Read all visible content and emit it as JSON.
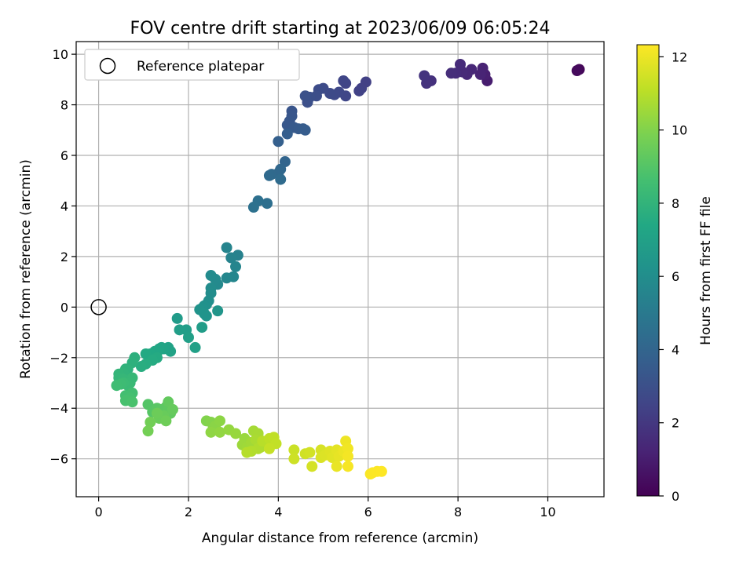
{
  "chart_data": {
    "type": "scatter",
    "title": "FOV centre drift starting at 2023/06/09 06:05:24",
    "xlabel": "Angular distance from reference (arcmin)",
    "ylabel": "Rotation from reference (arcmin)",
    "xlim": [
      -0.5,
      11.25
    ],
    "ylim": [
      -7.5,
      10.5
    ],
    "xticks": [
      0,
      2,
      4,
      6,
      8,
      10
    ],
    "yticks": [
      -6,
      -4,
      -2,
      0,
      2,
      4,
      6,
      8,
      10
    ],
    "grid": true,
    "colormap": "viridis",
    "colorbar": {
      "label": "Hours from first FF file",
      "range": [
        0,
        12.33
      ],
      "ticks": [
        0,
        2,
        4,
        6,
        8,
        10,
        12
      ]
    },
    "legend": {
      "position": "top-left",
      "entries": [
        {
          "label": "Reference platepar",
          "marker": "open-circle"
        }
      ]
    },
    "reference_point": {
      "x": 0,
      "y": 0
    },
    "series": [
      {
        "points": [
          [
            10.7,
            9.4,
            0.2
          ],
          [
            10.65,
            9.35,
            0.3
          ],
          [
            8.65,
            8.95,
            1.0
          ],
          [
            8.6,
            9.2,
            1.1
          ],
          [
            8.55,
            9.45,
            1.2
          ],
          [
            8.5,
            9.2,
            1.25
          ],
          [
            8.3,
            9.4,
            1.35
          ],
          [
            8.2,
            9.2,
            1.4
          ],
          [
            8.1,
            9.3,
            1.45
          ],
          [
            8.05,
            9.6,
            1.5
          ],
          [
            7.95,
            9.25,
            1.55
          ],
          [
            7.85,
            9.25,
            1.6
          ],
          [
            7.4,
            8.95,
            1.75
          ],
          [
            7.3,
            8.85,
            1.8
          ],
          [
            7.25,
            9.15,
            1.85
          ],
          [
            5.95,
            8.9,
            2.3
          ],
          [
            5.85,
            8.65,
            2.35
          ],
          [
            5.8,
            8.55,
            2.4
          ],
          [
            5.5,
            8.85,
            2.5
          ],
          [
            5.45,
            8.95,
            2.55
          ],
          [
            5.5,
            8.35,
            2.6
          ],
          [
            5.35,
            8.5,
            2.65
          ],
          [
            5.25,
            8.4,
            2.7
          ],
          [
            5.15,
            8.45,
            2.75
          ],
          [
            5.0,
            8.65,
            2.8
          ],
          [
            4.9,
            8.6,
            2.85
          ],
          [
            4.85,
            8.35,
            2.9
          ],
          [
            4.7,
            8.3,
            2.95
          ],
          [
            4.65,
            8.1,
            3.0
          ],
          [
            4.6,
            8.35,
            3.05
          ],
          [
            4.3,
            7.75,
            3.25
          ],
          [
            4.3,
            7.55,
            3.3
          ],
          [
            4.25,
            7.35,
            3.35
          ],
          [
            4.2,
            7.2,
            3.4
          ],
          [
            4.35,
            7.1,
            3.45
          ],
          [
            4.45,
            7.05,
            3.5
          ],
          [
            4.55,
            7.05,
            3.55
          ],
          [
            4.6,
            7.0,
            3.6
          ],
          [
            4.2,
            6.85,
            3.65
          ],
          [
            4.0,
            6.55,
            3.75
          ],
          [
            4.15,
            5.75,
            4.0
          ],
          [
            4.05,
            5.45,
            4.1
          ],
          [
            4.0,
            5.3,
            4.15
          ],
          [
            3.85,
            5.25,
            4.2
          ],
          [
            3.8,
            5.2,
            4.25
          ],
          [
            4.05,
            5.05,
            4.3
          ],
          [
            3.75,
            4.1,
            4.5
          ],
          [
            3.55,
            4.2,
            4.55
          ],
          [
            3.45,
            3.95,
            4.6
          ],
          [
            3.1,
            2.05,
            5.4
          ],
          [
            2.95,
            1.95,
            5.45
          ],
          [
            2.85,
            2.35,
            5.5
          ],
          [
            3.05,
            1.6,
            5.55
          ],
          [
            3.0,
            1.2,
            5.6
          ],
          [
            2.85,
            1.15,
            5.65
          ],
          [
            2.65,
            0.9,
            5.75
          ],
          [
            2.6,
            1.1,
            5.8
          ],
          [
            2.5,
            1.25,
            5.85
          ],
          [
            2.5,
            0.75,
            5.9
          ],
          [
            2.5,
            0.55,
            5.95
          ],
          [
            2.45,
            0.25,
            6.0
          ],
          [
            2.4,
            0.1,
            6.1
          ],
          [
            2.35,
            0.05,
            6.15
          ],
          [
            2.3,
            -0.05,
            6.2
          ],
          [
            2.25,
            -0.1,
            6.25
          ],
          [
            2.35,
            -0.25,
            6.3
          ],
          [
            2.4,
            -0.35,
            6.35
          ],
          [
            2.65,
            -0.15,
            6.4
          ],
          [
            1.75,
            -0.45,
            6.7
          ],
          [
            2.3,
            -0.8,
            6.75
          ],
          [
            1.95,
            -0.9,
            6.8
          ],
          [
            1.8,
            -0.9,
            6.85
          ],
          [
            2.0,
            -1.2,
            6.9
          ],
          [
            2.15,
            -1.6,
            6.95
          ],
          [
            1.6,
            -1.75,
            7.05
          ],
          [
            1.55,
            -1.6,
            7.1
          ],
          [
            1.45,
            -1.65,
            7.15
          ],
          [
            1.4,
            -1.6,
            7.2
          ],
          [
            1.35,
            -1.65,
            7.25
          ],
          [
            1.3,
            -1.8,
            7.3
          ],
          [
            1.25,
            -1.75,
            7.35
          ],
          [
            1.15,
            -1.85,
            7.4
          ],
          [
            1.05,
            -1.85,
            7.45
          ],
          [
            1.3,
            -2.0,
            7.5
          ],
          [
            1.2,
            -2.1,
            7.55
          ],
          [
            1.05,
            -2.25,
            7.6
          ],
          [
            0.95,
            -2.35,
            7.65
          ],
          [
            0.8,
            -2.0,
            7.8
          ],
          [
            0.75,
            -2.2,
            7.85
          ],
          [
            0.65,
            -2.45,
            7.9
          ],
          [
            0.6,
            -2.45,
            7.95
          ],
          [
            0.55,
            -2.6,
            8.0
          ],
          [
            0.45,
            -2.65,
            8.05
          ],
          [
            0.45,
            -2.8,
            8.1
          ],
          [
            0.55,
            -2.85,
            8.15
          ],
          [
            0.75,
            -2.8,
            8.2
          ],
          [
            0.7,
            -3.0,
            8.25
          ],
          [
            0.65,
            -3.1,
            8.3
          ],
          [
            0.55,
            -3.0,
            8.35
          ],
          [
            0.5,
            -3.05,
            8.4
          ],
          [
            0.4,
            -3.1,
            8.45
          ],
          [
            0.75,
            -3.4,
            8.55
          ],
          [
            0.6,
            -3.5,
            8.6
          ],
          [
            0.7,
            -3.6,
            8.65
          ],
          [
            0.6,
            -3.7,
            8.7
          ],
          [
            0.75,
            -3.75,
            8.75
          ],
          [
            1.1,
            -3.85,
            9.0
          ],
          [
            1.2,
            -4.15,
            9.05
          ],
          [
            1.3,
            -4.0,
            9.1
          ],
          [
            1.4,
            -4.05,
            9.15
          ],
          [
            1.5,
            -3.95,
            9.2
          ],
          [
            1.55,
            -4.1,
            9.25
          ],
          [
            1.6,
            -4.2,
            9.3
          ],
          [
            1.55,
            -3.75,
            9.35
          ],
          [
            1.65,
            -4.05,
            9.4
          ],
          [
            1.45,
            -4.3,
            9.45
          ],
          [
            1.35,
            -4.4,
            9.5
          ],
          [
            1.3,
            -4.2,
            9.55
          ],
          [
            1.5,
            -4.5,
            9.6
          ],
          [
            1.15,
            -4.55,
            9.65
          ],
          [
            1.1,
            -4.9,
            9.7
          ],
          [
            2.4,
            -4.5,
            10.0
          ],
          [
            2.5,
            -4.55,
            10.05
          ],
          [
            2.55,
            -4.8,
            10.1
          ],
          [
            2.6,
            -4.7,
            10.15
          ],
          [
            2.7,
            -4.5,
            10.2
          ],
          [
            2.5,
            -4.95,
            10.25
          ],
          [
            2.7,
            -4.95,
            10.3
          ],
          [
            2.9,
            -4.85,
            10.35
          ],
          [
            3.05,
            -5.0,
            10.4
          ],
          [
            3.25,
            -5.2,
            10.45
          ],
          [
            3.2,
            -5.45,
            10.5
          ],
          [
            3.3,
            -5.55,
            10.55
          ],
          [
            3.4,
            -5.35,
            10.6
          ],
          [
            3.45,
            -4.9,
            10.65
          ],
          [
            3.55,
            -5.0,
            10.7
          ],
          [
            3.5,
            -5.25,
            10.75
          ],
          [
            3.6,
            -5.55,
            10.8
          ],
          [
            3.55,
            -5.6,
            10.85
          ],
          [
            3.4,
            -5.7,
            10.9
          ],
          [
            3.3,
            -5.75,
            10.95
          ],
          [
            3.65,
            -5.3,
            11.0
          ],
          [
            3.8,
            -5.2,
            11.1
          ],
          [
            3.9,
            -5.15,
            11.15
          ],
          [
            3.95,
            -5.4,
            11.2
          ],
          [
            3.8,
            -5.6,
            11.25
          ],
          [
            4.35,
            -5.65,
            11.35
          ],
          [
            4.35,
            -6.0,
            11.4
          ],
          [
            4.6,
            -5.8,
            11.45
          ],
          [
            4.7,
            -5.75,
            11.5
          ],
          [
            4.75,
            -6.3,
            11.55
          ],
          [
            4.95,
            -5.65,
            11.6
          ],
          [
            4.95,
            -5.95,
            11.65
          ],
          [
            5.05,
            -5.85,
            11.7
          ],
          [
            5.15,
            -5.7,
            11.75
          ],
          [
            5.2,
            -5.95,
            11.8
          ],
          [
            5.3,
            -5.65,
            11.85
          ],
          [
            5.35,
            -5.9,
            11.9
          ],
          [
            5.3,
            -6.3,
            11.95
          ],
          [
            5.45,
            -5.7,
            12.0
          ],
          [
            5.5,
            -5.3,
            12.05
          ],
          [
            5.55,
            -5.6,
            12.1
          ],
          [
            5.55,
            -5.9,
            12.15
          ],
          [
            5.55,
            -6.3,
            12.2
          ],
          [
            6.05,
            -6.6,
            12.28
          ],
          [
            6.1,
            -6.55,
            12.3
          ],
          [
            6.2,
            -6.5,
            12.31
          ],
          [
            6.3,
            -6.5,
            12.33
          ]
        ]
      }
    ]
  }
}
